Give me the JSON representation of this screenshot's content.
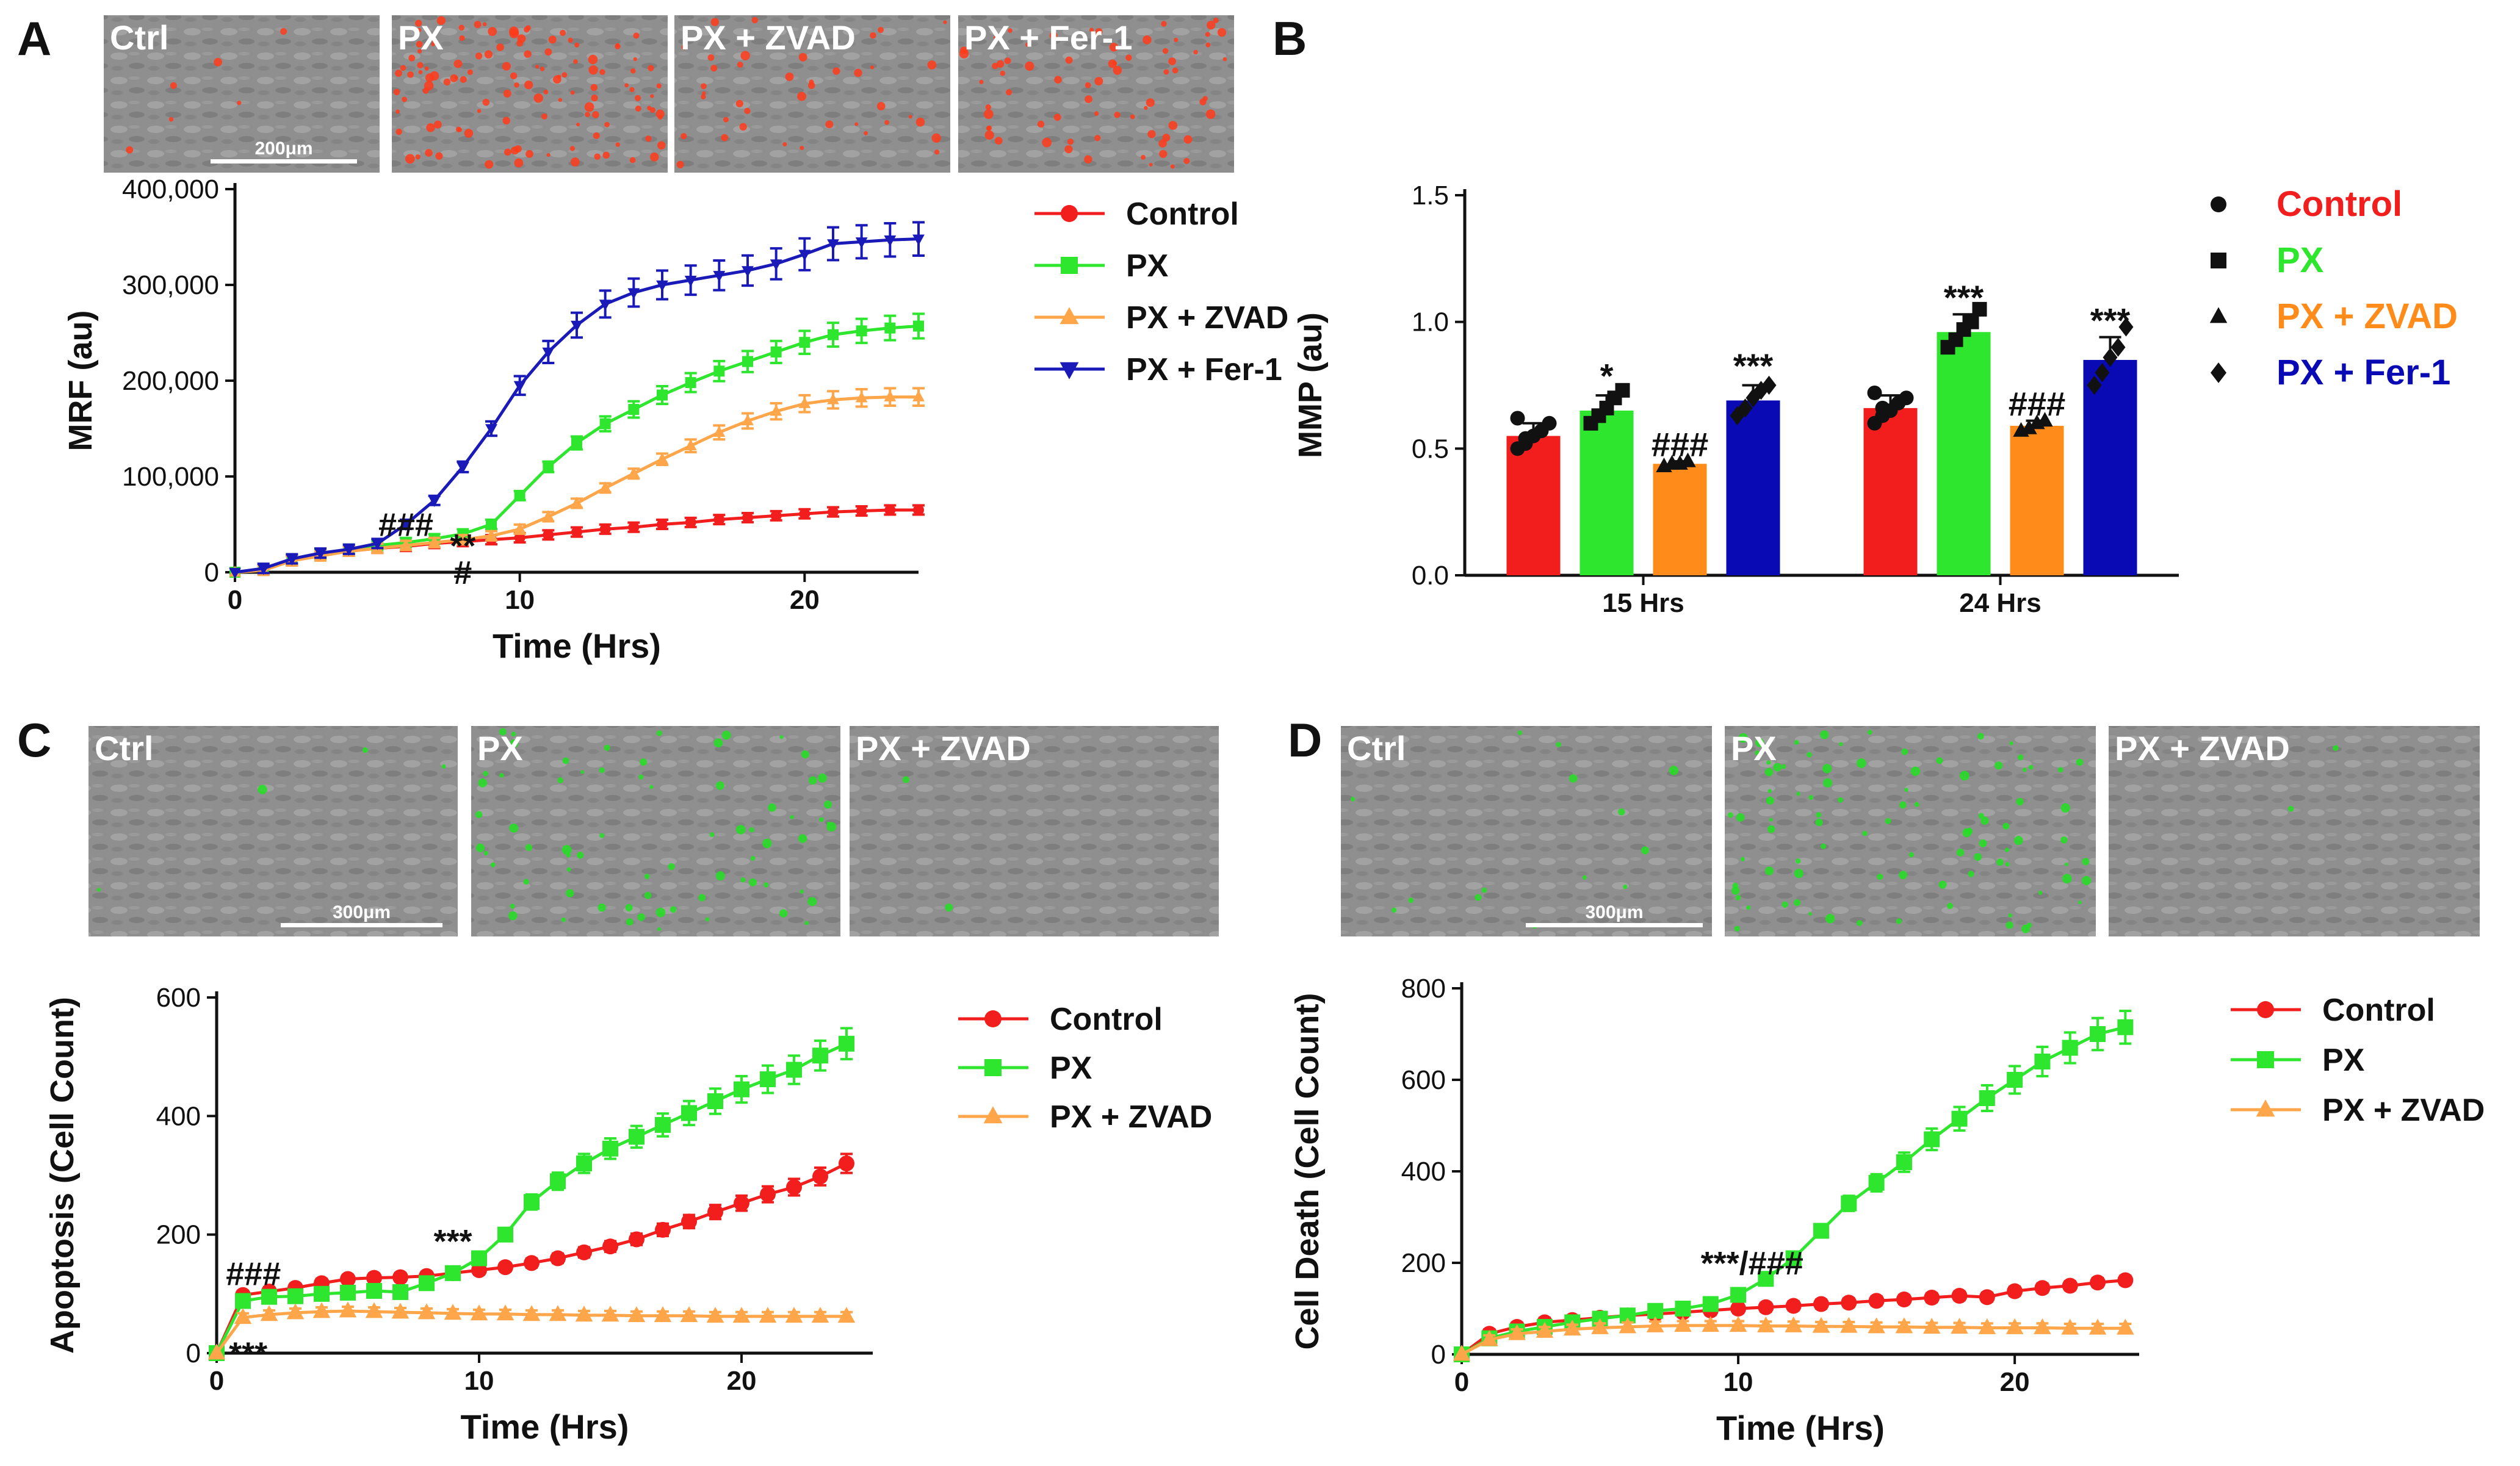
{
  "colors": {
    "control": "#f21d1d",
    "px": "#2ee62e",
    "zvad": "#ffa54a",
    "fer1": "#1a1ab8",
    "bar_zvad": "#ff8c1a",
    "bar_fer1": "#0a0ab4",
    "axis": "#111111"
  },
  "panel_labels": [
    "A",
    "B",
    "C",
    "D"
  ],
  "micrographs": {
    "A": {
      "labels": [
        "Ctrl",
        "PX",
        "PX + ZVAD",
        "PX + Fer-1"
      ],
      "scale_bar": "200μm",
      "dot_color": "#ff3b1a",
      "density": [
        6,
        120,
        40,
        70
      ]
    },
    "C": {
      "labels": [
        "Ctrl",
        "PX",
        "PX + ZVAD"
      ],
      "scale_bar": "300μm",
      "dot_color": "#22e022",
      "density": [
        4,
        70,
        2
      ]
    },
    "D": {
      "labels": [
        "Ctrl",
        "PX",
        "PX + ZVAD"
      ],
      "scale_bar": "300μm",
      "dot_color": "#22e022",
      "density": [
        14,
        90,
        2
      ]
    }
  },
  "chart_data": [
    {
      "panel": "A",
      "type": "line",
      "xlabel": "Time (Hrs)",
      "ylabel": "MRF (au)",
      "xlim": [
        0,
        24
      ],
      "ylim": [
        0,
        400000
      ],
      "xticks": [
        "0",
        "10",
        "20"
      ],
      "xtick_values": [
        0,
        10,
        20
      ],
      "yticks": [
        "0",
        "100,000",
        "200,000",
        "300,000",
        "400,000"
      ],
      "ytick_values": [
        0,
        100000,
        200000,
        300000,
        400000
      ],
      "x": [
        0,
        1,
        2,
        3,
        4,
        5,
        6,
        7,
        8,
        9,
        10,
        11,
        12,
        13,
        14,
        15,
        16,
        17,
        18,
        19,
        20,
        21,
        22,
        23,
        24
      ],
      "series": [
        {
          "name": "Control",
          "color_key": "control",
          "marker": "circle",
          "values": [
            0,
            3000,
            12000,
            18000,
            22000,
            25000,
            27000,
            30000,
            32000,
            34000,
            36000,
            39000,
            42000,
            45000,
            47000,
            50000,
            52000,
            55000,
            57000,
            59000,
            61000,
            63000,
            64000,
            65000,
            65000
          ]
        },
        {
          "name": "PX",
          "color_key": "px",
          "marker": "square",
          "values": [
            0,
            3000,
            13000,
            19000,
            24000,
            28000,
            31000,
            35000,
            40000,
            50000,
            80000,
            110000,
            135000,
            155000,
            170000,
            185000,
            198000,
            210000,
            220000,
            230000,
            240000,
            248000,
            252000,
            255000,
            257000
          ]
        },
        {
          "name": "PX + ZVAD",
          "color_key": "zvad",
          "marker": "triangle-up",
          "values": [
            0,
            2000,
            12000,
            17000,
            22000,
            25000,
            28000,
            31000,
            34000,
            38000,
            45000,
            58000,
            72000,
            88000,
            103000,
            118000,
            132000,
            146000,
            158000,
            168000,
            176000,
            180000,
            182000,
            183000,
            183000
          ]
        },
        {
          "name": "PX + Fer-1",
          "color_key": "fer1",
          "marker": "triangle-down",
          "values": [
            0,
            4000,
            14000,
            20000,
            24000,
            30000,
            50000,
            75000,
            110000,
            150000,
            195000,
            230000,
            258000,
            280000,
            292000,
            300000,
            305000,
            310000,
            315000,
            322000,
            332000,
            343000,
            345000,
            347000,
            348000
          ]
        }
      ],
      "annotations": [
        {
          "text": "###",
          "x": 6,
          "y": 38000
        },
        {
          "text": "**",
          "x": 8,
          "y": 16000
        },
        {
          "text": "#",
          "x": 8,
          "y": -12000
        }
      ]
    },
    {
      "panel": "B",
      "type": "bar",
      "xlabel": "",
      "ylabel": "MMP (au)",
      "ylim": [
        0,
        1.5
      ],
      "yticks": [
        "0.0",
        "0.5",
        "1.0",
        "1.5"
      ],
      "ytick_values": [
        0,
        0.5,
        1.0,
        1.5
      ],
      "categories": [
        "15 Hrs",
        "24 Hrs"
      ],
      "series": [
        {
          "name": "Control",
          "color_key": "control",
          "marker": "circle",
          "values": [
            0.55,
            0.66
          ],
          "errors": [
            0.05,
            0.05
          ],
          "points": [
            [
              0.5,
              0.52,
              0.55,
              0.57,
              0.6,
              0.62,
              0.54
            ],
            [
              0.6,
              0.63,
              0.65,
              0.68,
              0.7,
              0.72,
              0.66
            ]
          ]
        },
        {
          "name": "PX",
          "color_key": "px",
          "marker": "square",
          "values": [
            0.65,
            0.96
          ],
          "errors": [
            0.06,
            0.07
          ],
          "points": [
            [
              0.6,
              0.63,
              0.66,
              0.7,
              0.73
            ],
            [
              0.9,
              0.93,
              0.97,
              1.0,
              1.05
            ]
          ]
        },
        {
          "name": "PX + ZVAD",
          "color_key": "bar_zvad",
          "marker": "triangle-up",
          "values": [
            0.44,
            0.59
          ],
          "errors": [
            0.01,
            0.02
          ],
          "points": [
            [
              0.43,
              0.44,
              0.44,
              0.45
            ],
            [
              0.57,
              0.58,
              0.6,
              0.61
            ]
          ]
        },
        {
          "name": "PX + Fer-1",
          "color_key": "bar_fer1",
          "marker": "diamond",
          "values": [
            0.69,
            0.85
          ],
          "errors": [
            0.06,
            0.09
          ],
          "points": [
            [
              0.63,
              0.66,
              0.7,
              0.73,
              0.75
            ],
            [
              0.75,
              0.8,
              0.86,
              0.9,
              0.98
            ]
          ]
        }
      ],
      "annotations": [
        {
          "text": "*",
          "category": 0,
          "series": 1,
          "y": 0.74
        },
        {
          "text": "###",
          "category": 0,
          "series": 2,
          "y": 0.47
        },
        {
          "text": "***",
          "category": 0,
          "series": 3,
          "y": 0.78
        },
        {
          "text": "***",
          "category": 1,
          "series": 1,
          "y": 1.05
        },
        {
          "text": "###",
          "category": 1,
          "series": 2,
          "y": 0.63
        },
        {
          "text": "***",
          "category": 1,
          "series": 3,
          "y": 0.96
        }
      ]
    },
    {
      "panel": "C",
      "type": "line",
      "xlabel": "Time (Hrs)",
      "ylabel": "Apoptosis (Cell Count)",
      "xlim": [
        0,
        25
      ],
      "ylim": [
        0,
        600
      ],
      "xticks": [
        "0",
        "10",
        "20"
      ],
      "xtick_values": [
        0,
        10,
        20
      ],
      "yticks": [
        "0",
        "200",
        "400",
        "600"
      ],
      "ytick_values": [
        0,
        200,
        400,
        600
      ],
      "x": [
        0,
        1,
        2,
        3,
        4,
        5,
        6,
        7,
        8,
        9,
        10,
        11,
        12,
        13,
        14,
        15,
        16,
        17,
        18,
        19,
        20,
        21,
        22,
        23,
        24
      ],
      "series": [
        {
          "name": "Control",
          "color_key": "control",
          "marker": "circle",
          "values": [
            0,
            98,
            104,
            110,
            118,
            125,
            127,
            128,
            130,
            135,
            140,
            145,
            152,
            160,
            170,
            180,
            192,
            208,
            222,
            238,
            253,
            268,
            280,
            298,
            320
          ]
        },
        {
          "name": "PX",
          "color_key": "px",
          "marker": "square",
          "values": [
            0,
            88,
            95,
            96,
            100,
            102,
            105,
            103,
            118,
            135,
            160,
            200,
            255,
            290,
            320,
            345,
            365,
            385,
            405,
            425,
            445,
            462,
            478,
            502,
            522
          ]
        },
        {
          "name": "PX + ZVAD",
          "color_key": "zvad",
          "marker": "triangle-up",
          "values": [
            0,
            60,
            65,
            68,
            70,
            71,
            70,
            69,
            68,
            67,
            66,
            66,
            65,
            65,
            64,
            64,
            63,
            63,
            63,
            62,
            62,
            62,
            62,
            62,
            62
          ]
        }
      ],
      "annotations": [
        {
          "text": "###",
          "x": 1.4,
          "y": 115
        },
        {
          "text": "***",
          "x": 9,
          "y": 170
        },
        {
          "text": "***",
          "x": 1.2,
          "y": -20
        }
      ]
    },
    {
      "panel": "D",
      "type": "line",
      "xlabel": "Time (Hrs)",
      "ylabel": "Cell Death (Cell Count)",
      "xlim": [
        0,
        24.5
      ],
      "ylim": [
        0,
        800
      ],
      "xticks": [
        "0",
        "10",
        "20"
      ],
      "xtick_values": [
        0,
        10,
        20
      ],
      "yticks": [
        "0",
        "200",
        "400",
        "600",
        "800"
      ],
      "ytick_values": [
        0,
        200,
        400,
        600,
        800
      ],
      "x": [
        0,
        1,
        2,
        3,
        4,
        5,
        6,
        7,
        8,
        9,
        10,
        11,
        12,
        13,
        14,
        15,
        16,
        17,
        18,
        19,
        20,
        21,
        22,
        23,
        24
      ],
      "series": [
        {
          "name": "Control",
          "color_key": "control",
          "marker": "circle",
          "values": [
            0,
            45,
            60,
            70,
            75,
            80,
            85,
            88,
            92,
            96,
            100,
            103,
            106,
            110,
            113,
            117,
            120,
            124,
            128,
            125,
            138,
            145,
            150,
            157,
            162
          ]
        },
        {
          "name": "PX",
          "color_key": "px",
          "marker": "square",
          "values": [
            0,
            35,
            50,
            60,
            70,
            78,
            85,
            95,
            100,
            110,
            130,
            165,
            210,
            270,
            330,
            375,
            420,
            470,
            515,
            560,
            600,
            640,
            670,
            700,
            715
          ]
        },
        {
          "name": "PX + ZVAD",
          "color_key": "zvad",
          "marker": "triangle-up",
          "values": [
            0,
            32,
            45,
            50,
            55,
            58,
            60,
            62,
            63,
            63,
            63,
            62,
            62,
            61,
            61,
            60,
            60,
            59,
            59,
            58,
            58,
            58,
            57,
            57,
            57
          ]
        }
      ],
      "annotations": [
        {
          "text": "***/###",
          "x": 10.5,
          "y": 175
        }
      ]
    }
  ]
}
